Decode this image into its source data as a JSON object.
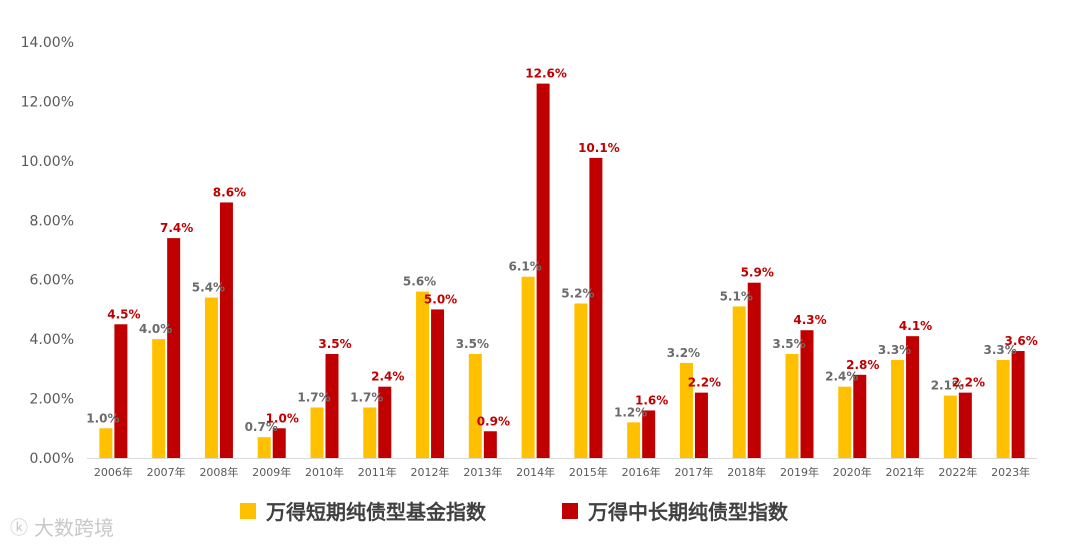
{
  "chart_data": {
    "type": "bar",
    "title": "",
    "xlabel": "",
    "ylabel": "",
    "ylim": [
      0,
      14
    ],
    "yticks": [
      "0.00%",
      "2.00%",
      "4.00%",
      "6.00%",
      "8.00%",
      "10.00%",
      "12.00%",
      "14.00%"
    ],
    "categories": [
      "2006年",
      "2007年",
      "2008年",
      "2009年",
      "2010年",
      "2011年",
      "2012年",
      "2013年",
      "2014年",
      "2015年",
      "2016年",
      "2017年",
      "2018年",
      "2019年",
      "2020年",
      "2021年",
      "2022年",
      "2023年"
    ],
    "series": [
      {
        "name": "万得短期纯债型基金指数",
        "color": "#ffc000",
        "values": [
          1.0,
          4.0,
          5.4,
          0.7,
          1.7,
          1.7,
          5.6,
          3.5,
          6.1,
          5.2,
          1.2,
          3.2,
          5.1,
          3.5,
          2.4,
          3.3,
          2.1,
          3.3
        ],
        "labels": [
          "1.0%",
          "4.0%",
          "5.4%",
          "0.7%",
          "1.7%",
          "1.7%",
          "5.6%",
          "3.5%",
          "6.1%",
          "5.2%",
          "1.2%",
          "3.2%",
          "5.1%",
          "3.5%",
          "2.4%",
          "3.3%",
          "2.1%",
          "3.3%"
        ]
      },
      {
        "name": "万得中长期纯债型指数",
        "color": "#c00000",
        "values": [
          4.5,
          7.4,
          8.6,
          1.0,
          3.5,
          2.4,
          5.0,
          0.9,
          12.6,
          10.1,
          1.6,
          2.2,
          5.9,
          4.3,
          2.8,
          4.1,
          2.2,
          3.6
        ],
        "labels": [
          "4.5%",
          "7.4%",
          "8.6%",
          "1.0%",
          "3.5%",
          "2.4%",
          "5.0%",
          "0.9%",
          "12.6%",
          "10.1%",
          "1.6%",
          "2.2%",
          "5.9%",
          "4.3%",
          "2.8%",
          "4.1%",
          "2.2%",
          "3.6%"
        ]
      }
    ],
    "grid": false,
    "legend_position": "bottom"
  },
  "legend": {
    "short_label": "万得短期纯债型基金指数",
    "long_label": "万得中长期纯债型指数"
  },
  "watermark": {
    "text": "大数跨境"
  }
}
